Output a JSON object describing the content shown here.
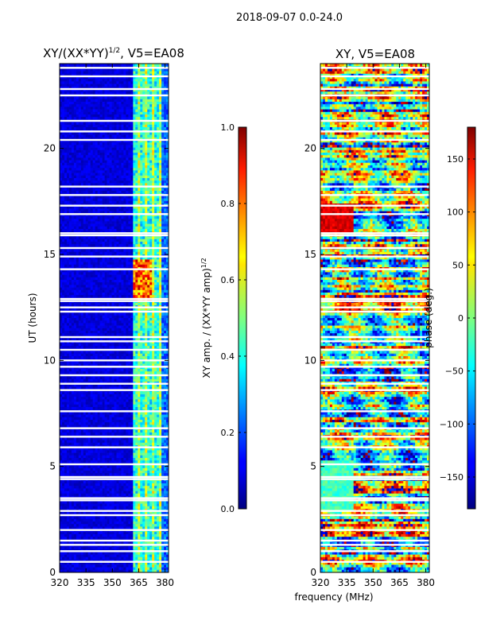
{
  "suptitle": "2018-09-07 0.0-24.0",
  "chart_data": [
    {
      "type": "heatmap",
      "title": "XY/(XX*YY)",
      "title_power": "1/2",
      "title_suffix": ", V5=EA08",
      "xlabel": "",
      "ylabel": "UT (hours)",
      "xlim": [
        320,
        382
      ],
      "ylim": [
        0,
        24
      ],
      "xticks": [
        320,
        335,
        350,
        365,
        380
      ],
      "yticks": [
        0,
        5,
        10,
        15,
        20
      ],
      "colorbar": {
        "label": "XY amp. / (XX*YY amp)",
        "label_power": "1/2",
        "range": [
          0.0,
          1.0
        ],
        "ticks": [
          "0.0",
          "0.2",
          "0.4",
          "0.6",
          "0.8",
          "1.0"
        ],
        "tick_values": [
          0.0,
          0.2,
          0.4,
          0.6,
          0.8,
          1.0
        ],
        "colormap": "jet"
      },
      "active_band_mhz": [
        362,
        378
      ],
      "peak_interval_hours": [
        12.8,
        14.8
      ],
      "gap_hours": [
        23.4,
        23.8,
        22.5,
        22.8,
        21.3,
        20.8,
        20.4,
        18.2,
        17.8,
        17.3,
        16.9,
        16.0,
        15.9,
        15.3,
        14.9,
        14.3,
        12.9,
        12.8,
        12.5,
        12.3,
        11.1,
        10.9,
        10.5,
        10.0,
        9.7,
        9.3,
        8.9,
        8.6,
        7.6,
        6.8,
        6.4,
        5.9,
        5.1,
        4.5,
        4.4,
        3.5,
        3.4,
        2.9,
        2.7,
        2.0,
        1.5,
        1.3,
        1.0,
        0.5
      ]
    },
    {
      "type": "heatmap",
      "title": "XY, V5=EA08",
      "xlabel": "frequency (MHz)",
      "ylabel": "",
      "xlim": [
        320,
        382
      ],
      "ylim": [
        0,
        24
      ],
      "xticks": [
        320,
        335,
        350,
        365,
        380
      ],
      "yticks": [
        0,
        5,
        10,
        15,
        20
      ],
      "colorbar": {
        "label": "phase (deg.)",
        "range": [
          -180,
          180
        ],
        "ticks": [
          "150",
          "100",
          "50",
          "0",
          "−50",
          "−100",
          "−150"
        ],
        "tick_values": [
          150,
          100,
          50,
          0,
          -50,
          -100,
          -150
        ],
        "colormap": "jet"
      },
      "gap_hours": [
        23.4,
        23.8,
        22.5,
        22.8,
        21.3,
        20.8,
        20.4,
        18.2,
        17.8,
        17.3,
        16.9,
        16.0,
        15.9,
        15.3,
        14.9,
        14.3,
        12.9,
        12.8,
        12.5,
        12.3,
        11.1,
        10.9,
        10.5,
        10.0,
        9.7,
        9.3,
        8.9,
        8.6,
        7.6,
        6.8,
        6.4,
        5.9,
        5.1,
        4.5,
        4.4,
        3.5,
        3.4,
        2.9,
        2.7,
        2.0,
        1.5,
        1.3,
        1.0,
        0.5
      ]
    }
  ]
}
